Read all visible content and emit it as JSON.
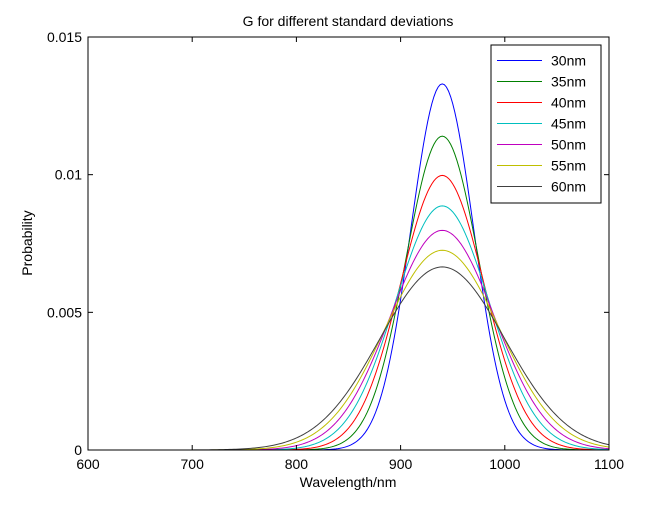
{
  "chart_data": {
    "type": "line",
    "title": "G for different standard deviations",
    "xlabel": "Wavelength/nm",
    "ylabel": "Probability",
    "xlim": [
      600,
      1100
    ],
    "ylim": [
      0,
      0.015
    ],
    "xticks": [
      600,
      700,
      800,
      900,
      1000,
      1100
    ],
    "xtick_labels": [
      "600",
      "700",
      "800",
      "900",
      "1000",
      "1100"
    ],
    "yticks": [
      0,
      0.005,
      0.01,
      0.015
    ],
    "ytick_labels": [
      "0",
      "0.005",
      "0.01",
      "0.015"
    ],
    "grid": false,
    "legend_position": "top-right",
    "curve_function": "gaussian",
    "mean": 940,
    "series": [
      {
        "name": "30nm",
        "sigma": 30,
        "color": "#0000ff"
      },
      {
        "name": "35nm",
        "sigma": 35,
        "color": "#008000"
      },
      {
        "name": "40nm",
        "sigma": 40,
        "color": "#ff0000"
      },
      {
        "name": "45nm",
        "sigma": 45,
        "color": "#00bfbf"
      },
      {
        "name": "50nm",
        "sigma": 50,
        "color": "#bf00bf"
      },
      {
        "name": "55nm",
        "sigma": 55,
        "color": "#bfbf00"
      },
      {
        "name": "60nm",
        "sigma": 60,
        "color": "#404040"
      }
    ]
  }
}
